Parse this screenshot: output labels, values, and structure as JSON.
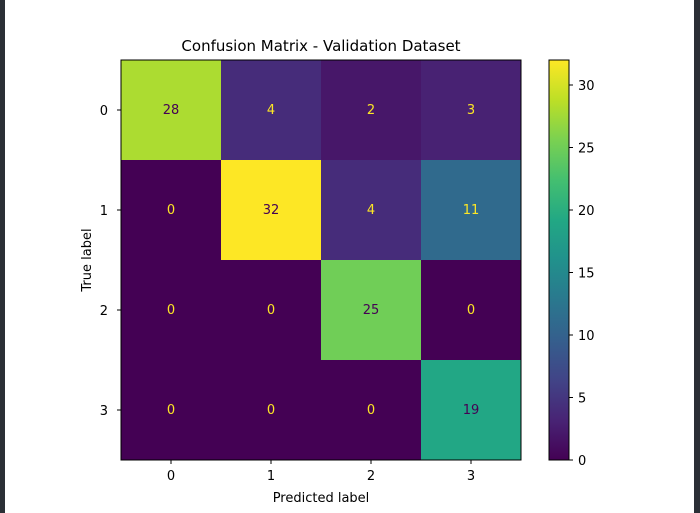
{
  "chart_data": {
    "type": "heatmap",
    "title": "Confusion Matrix - Validation Dataset",
    "xlabel": "Predicted label",
    "ylabel": "True label",
    "x_categories": [
      "0",
      "1",
      "2",
      "3"
    ],
    "y_categories": [
      "0",
      "1",
      "2",
      "3"
    ],
    "values": [
      [
        28,
        4,
        2,
        3
      ],
      [
        0,
        32,
        4,
        11
      ],
      [
        0,
        0,
        25,
        0
      ],
      [
        0,
        0,
        0,
        19
      ]
    ],
    "colormap": "viridis",
    "colorbar": {
      "range": [
        0,
        32
      ],
      "ticks": [
        "0",
        "5",
        "10",
        "15",
        "20",
        "25",
        "30"
      ]
    },
    "text_colors": {
      "on_dark": "#fde725",
      "on_light": "#440154"
    },
    "grid": false
  }
}
